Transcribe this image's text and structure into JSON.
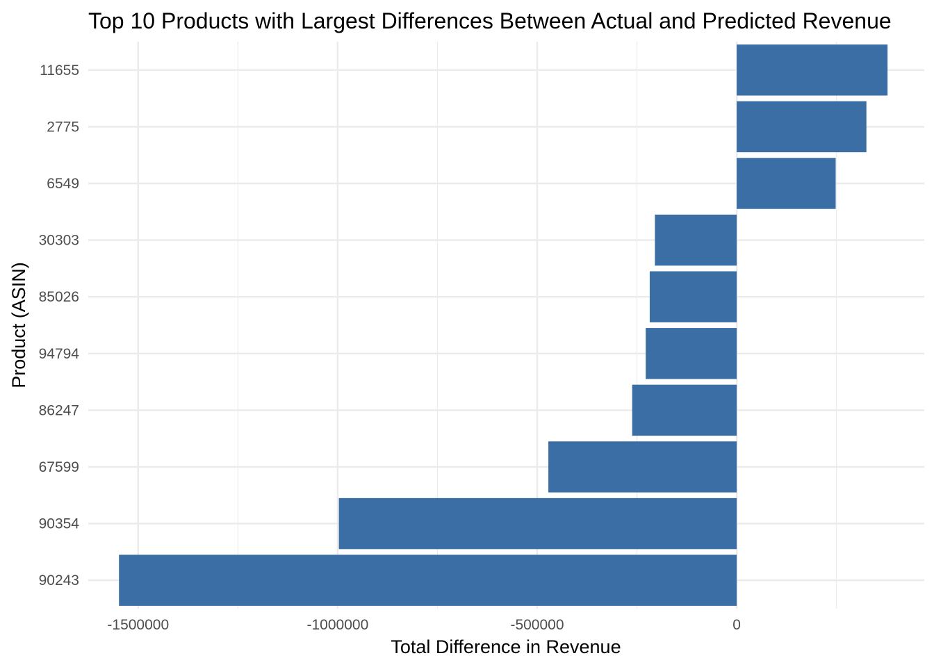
{
  "chart_data": {
    "type": "bar",
    "orientation": "horizontal",
    "title": "Top 10 Products with Largest Differences Between Actual and Predicted Revenue",
    "xlabel": "Total Difference in Revenue",
    "ylabel": "Product (ASIN)",
    "categories": [
      "11655",
      "2775",
      "6549",
      "30303",
      "85026",
      "94794",
      "86247",
      "67599",
      "90354",
      "90243"
    ],
    "values": [
      378000,
      325000,
      248000,
      -205000,
      -218000,
      -228000,
      -262000,
      -472000,
      -997000,
      -1548000
    ],
    "xlim": [
      -1625000,
      470000
    ],
    "x_ticks": [
      -1500000,
      -1000000,
      -500000,
      0
    ],
    "x_tick_labels": [
      "-1500000",
      "-1000000",
      "-500000",
      "0"
    ],
    "x_minor_ticks": [
      -1250000,
      -750000,
      -250000,
      250000
    ],
    "grid": true,
    "legend": "none",
    "bar_color": "#3a6ea5",
    "grid_color": "#ebebeb"
  }
}
